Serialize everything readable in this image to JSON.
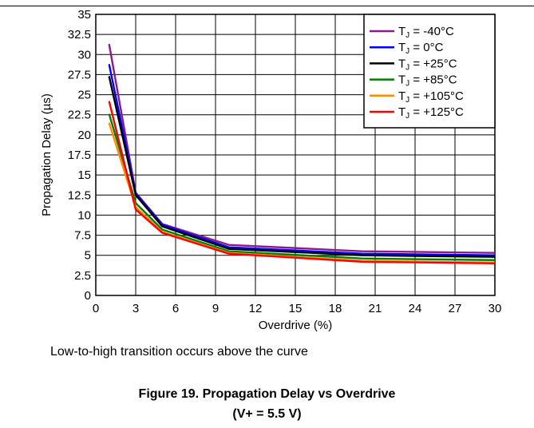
{
  "chart_data": {
    "type": "line",
    "xlabel": "Overdrive (%)",
    "ylabel": "Propagation Delay (µs)",
    "xlim": [
      0,
      30
    ],
    "ylim": [
      0,
      35
    ],
    "xticks": [
      0,
      3,
      6,
      9,
      12,
      15,
      18,
      21,
      24,
      27,
      30
    ],
    "yticks": [
      0,
      2.5,
      5,
      7.5,
      10,
      12.5,
      15,
      17.5,
      20,
      22.5,
      25,
      27.5,
      30,
      32.5,
      35
    ],
    "xtick_labels": [
      "0",
      "3",
      "6",
      "9",
      "12",
      "15",
      "18",
      "21",
      "24",
      "27",
      "30"
    ],
    "ytick_labels": [
      "0",
      "2.5",
      "5",
      "7.5",
      "10",
      "12.5",
      "15",
      "17.5",
      "20",
      "22.5",
      "25",
      "27.5",
      "30",
      "32.5",
      "35"
    ],
    "grid": true,
    "legend_position": "top-right",
    "x": [
      1,
      3,
      5,
      10,
      20,
      30
    ],
    "series": [
      {
        "name": "T",
        "sub": "J",
        "rest": " = -40°C",
        "color": "#8b1a8b",
        "values": [
          31.3,
          12.8,
          8.9,
          6.3,
          5.5,
          5.3
        ]
      },
      {
        "name": "T",
        "sub": "J",
        "rest": " = 0°C",
        "color": "#0000ff",
        "values": [
          28.8,
          12.7,
          8.8,
          6.0,
          5.2,
          5.0
        ]
      },
      {
        "name": "T",
        "sub": "J",
        "rest": " = +25°C",
        "color": "#000000",
        "values": [
          27.3,
          12.5,
          8.6,
          5.8,
          5.0,
          4.8
        ]
      },
      {
        "name": "T",
        "sub": "J",
        "rest": " = +85°C",
        "color": "#008000",
        "values": [
          22.6,
          11.5,
          8.2,
          5.5,
          4.6,
          4.4
        ]
      },
      {
        "name": "T",
        "sub": "J",
        "rest": " = +105°C",
        "color": "#ff8c00",
        "values": [
          21.5,
          11.0,
          7.9,
          5.3,
          4.3,
          4.1
        ]
      },
      {
        "name": "T",
        "sub": "J",
        "rest": " = +125°C",
        "color": "#ff0000",
        "values": [
          24.2,
          10.7,
          7.8,
          5.2,
          4.2,
          4.0
        ]
      }
    ]
  },
  "note": "Low-to-high transition occurs above the curve",
  "caption_line1": "Figure 19. Propagation Delay vs Overdrive",
  "caption_line2": "(V+ = 5.5 V)"
}
